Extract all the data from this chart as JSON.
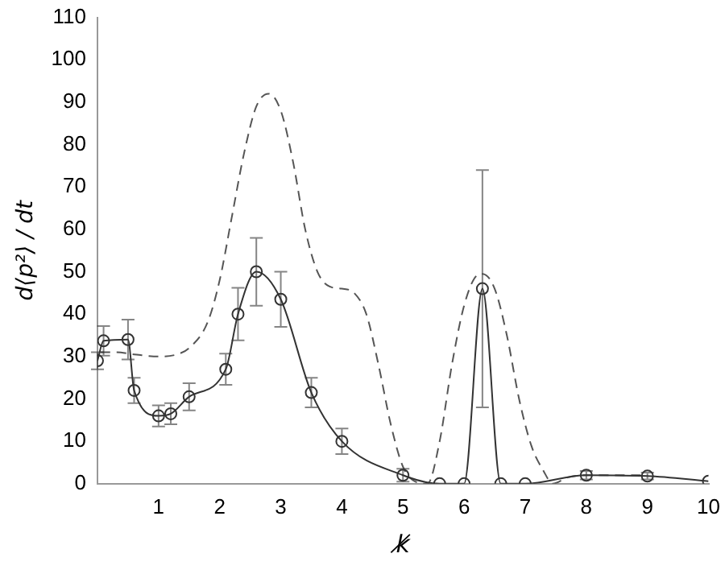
{
  "chart_data": {
    "type": "line",
    "xlabel": "k̸",
    "ylabel": "d⟨p²⟩ / dt",
    "xlim": [
      0,
      10
    ],
    "xticks": [
      1,
      2,
      3,
      4,
      5,
      6,
      7,
      8,
      9,
      10
    ],
    "ylim": [
      0,
      110
    ],
    "yticks": [
      0,
      10,
      20,
      30,
      40,
      50,
      60,
      70,
      80,
      90,
      100,
      110
    ],
    "grid": false,
    "legend": false,
    "series": [
      {
        "color": "#333333",
        "marker": "circle",
        "line_style": "solid",
        "x": [
          0,
          0.1,
          0.5,
          0.6,
          1.0,
          1.2,
          1.5,
          2.1,
          2.3,
          2.6,
          3.0,
          3.5,
          4.0,
          5.0,
          5.6,
          6.0,
          6.3,
          6.6,
          7.0,
          8.0,
          9.0,
          10.0
        ],
        "values": [
          29,
          33.7,
          34,
          22,
          16,
          16.5,
          20.5,
          27,
          40,
          50,
          43.5,
          21.5,
          10,
          2,
          0,
          0,
          46,
          0,
          0,
          2,
          1.8,
          0.6
        ],
        "errors": [
          2,
          3.5,
          4.7,
          3,
          2.5,
          2.5,
          3.2,
          3.7,
          6.2,
          8,
          6.5,
          3.5,
          3,
          1.5,
          null,
          null,
          28,
          null,
          null,
          1,
          0.8,
          null
        ]
      },
      {
        "color": "#555555",
        "marker": "none",
        "line_style": "dashed",
        "x": [
          0.05,
          0.3,
          0.6,
          1.0,
          1.3,
          1.5,
          1.8,
          2.0,
          2.2,
          2.4,
          2.6,
          2.8,
          3.0,
          3.2,
          3.4,
          3.6,
          3.8,
          4.0,
          4.2,
          4.4,
          4.6,
          4.8,
          5.0,
          5.2,
          5.4,
          5.6,
          5.8,
          6.0,
          6.2,
          6.3,
          6.5,
          6.7,
          6.9,
          7.1,
          7.3,
          7.45,
          7.7,
          8.0,
          9.0
        ],
        "values": [
          31,
          31,
          30.5,
          30,
          30.5,
          32,
          38,
          48,
          63,
          78,
          89,
          92,
          88,
          76,
          60,
          50,
          46.5,
          46,
          45,
          40,
          28,
          14,
          4,
          0.5,
          0,
          10,
          28,
          42,
          49,
          49.5,
          46,
          35,
          20,
          9,
          3,
          0,
          1.5,
          2,
          2
        ]
      }
    ]
  }
}
